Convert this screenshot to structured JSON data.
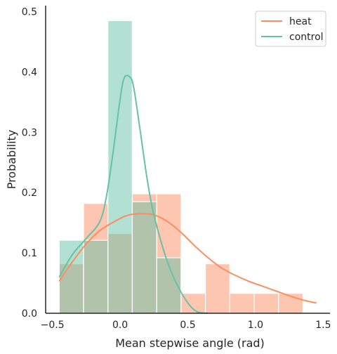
{
  "chart_data": {
    "type": "bar",
    "xlabel": "Mean stepwise angle (rad)",
    "ylabel": "Probability",
    "xlim": [
      -0.55,
      1.55
    ],
    "ylim": [
      0,
      0.51
    ],
    "x_ticks": [
      {
        "value": -0.5,
        "label": "−0.5"
      },
      {
        "value": 0.0,
        "label": "0.0"
      },
      {
        "value": 0.5,
        "label": "0.5"
      },
      {
        "value": 1.0,
        "label": "1.0"
      },
      {
        "value": 1.5,
        "label": "1.5"
      }
    ],
    "y_ticks": [
      {
        "value": 0.0,
        "label": "0.0"
      },
      {
        "value": 0.1,
        "label": "0.1"
      },
      {
        "value": 0.2,
        "label": "0.2"
      },
      {
        "value": 0.3,
        "label": "0.3"
      },
      {
        "value": 0.4,
        "label": "0.4"
      },
      {
        "value": 0.5,
        "label": "0.5"
      }
    ],
    "legend_position": "top-right",
    "bin_edges": [
      -0.45,
      -0.27,
      -0.09,
      0.09,
      0.27,
      0.45,
      0.63,
      0.81,
      0.99,
      1.17,
      1.35
    ],
    "series": [
      {
        "name": "heat",
        "color": "#fc8d62",
        "values": [
          0.082,
          0.182,
          0.132,
          0.198,
          0.198,
          0.033,
          0.082,
          0.033,
          0.033,
          0.033
        ],
        "kde_x": [
          -0.45,
          -0.35,
          -0.25,
          -0.15,
          -0.05,
          0.05,
          0.15,
          0.25,
          0.35,
          0.45,
          0.55,
          0.65,
          0.75,
          0.85,
          0.95,
          1.05,
          1.15,
          1.25,
          1.35,
          1.45
        ],
        "kde_y": [
          0.053,
          0.086,
          0.115,
          0.137,
          0.151,
          0.162,
          0.165,
          0.163,
          0.152,
          0.134,
          0.112,
          0.092,
          0.075,
          0.063,
          0.053,
          0.045,
          0.037,
          0.029,
          0.022,
          0.017
        ]
      },
      {
        "name": "control",
        "color": "#66c2a5",
        "values": [
          0.121,
          0.121,
          0.485,
          0.185,
          0.092,
          0,
          0,
          0,
          0,
          0
        ],
        "kde_x": [
          -0.45,
          -0.35,
          -0.25,
          -0.15,
          -0.1,
          -0.05,
          0.0,
          0.03,
          0.07,
          0.1,
          0.15,
          0.2,
          0.25,
          0.35,
          0.45,
          0.55,
          0.65
        ],
        "kde_y": [
          0.06,
          0.098,
          0.124,
          0.152,
          0.195,
          0.27,
          0.355,
          0.39,
          0.392,
          0.375,
          0.3,
          0.222,
          0.163,
          0.085,
          0.035,
          0.005,
          0.0
        ]
      }
    ]
  }
}
